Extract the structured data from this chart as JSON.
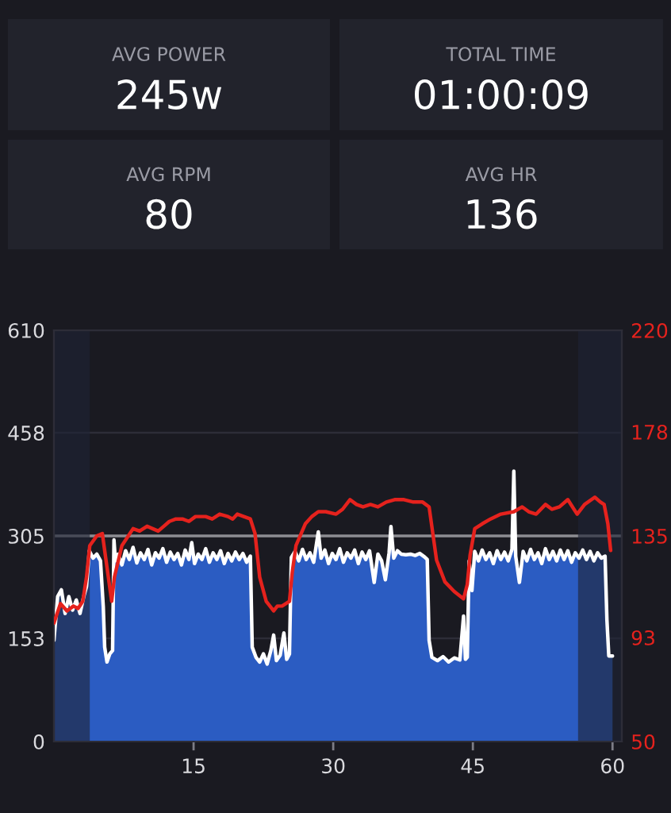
{
  "chart_data": [
    {
      "type": "other",
      "title": "AVG POWER",
      "annotations": [
        "245w"
      ]
    },
    {
      "type": "other",
      "title": "TOTAL TIME",
      "annotations": [
        "01:00:09"
      ]
    },
    {
      "type": "other",
      "title": "AVG RPM",
      "annotations": [
        "80"
      ]
    },
    {
      "type": "other",
      "title": "AVG HR",
      "annotations": [
        "136"
      ]
    },
    {
      "type": "line",
      "xlim": [
        0,
        61
      ],
      "xticks": [
        15,
        30,
        45,
        60
      ],
      "ylim": [
        0,
        610
      ],
      "yticks": [
        0,
        153,
        305,
        458,
        610
      ],
      "y2lim": [
        50,
        220
      ],
      "y2ticks": [
        50,
        93,
        135,
        178,
        220
      ],
      "grid": "y",
      "ref_lines": [
        {
          "axis": "y",
          "value": 305,
          "color": "#8c8c92"
        }
      ],
      "bands": [
        {
          "axis": "x",
          "from": 0,
          "to": 3.85,
          "color": "#1f2436"
        },
        {
          "axis": "x",
          "from": 56.3,
          "to": 61,
          "color": "#1f2436"
        }
      ],
      "series": [
        {
          "type": "area",
          "color": "#2b5cc2",
          "x": [
            0,
            0.4,
            0.8,
            1.2,
            1.6,
            2.0,
            2.4,
            2.8,
            3.2,
            3.5,
            3.8,
            4.2,
            4.6,
            5.0,
            5.3,
            5.45,
            5.7,
            6.0,
            6.3,
            6.45,
            6.6,
            6.9,
            7.3,
            7.7,
            8.1,
            8.5,
            8.9,
            9.3,
            9.7,
            10.1,
            10.5,
            10.9,
            11.3,
            11.7,
            12.1,
            12.5,
            12.9,
            13.3,
            13.7,
            14.1,
            14.5,
            14.8,
            15.1,
            15.5,
            15.9,
            16.3,
            16.7,
            17.1,
            17.5,
            17.9,
            18.3,
            18.7,
            19.1,
            19.5,
            19.9,
            20.3,
            20.7,
            21.1,
            21.3,
            21.7,
            22.1,
            22.5,
            22.9,
            23.3,
            23.6,
            23.9,
            24.3,
            24.7,
            25.0,
            25.3,
            25.5,
            25.9,
            26.3,
            26.7,
            27.1,
            27.5,
            27.9,
            28.4,
            28.7,
            29.1,
            29.5,
            29.9,
            30.3,
            30.7,
            31.1,
            31.5,
            31.9,
            32.3,
            32.7,
            33.1,
            33.5,
            33.9,
            34.4,
            34.8,
            35.2,
            35.6,
            36.0,
            36.2,
            36.5,
            36.9,
            37.3,
            37.8,
            38.3,
            38.8,
            39.3,
            39.8,
            40.1,
            40.3,
            40.6,
            41.2,
            41.8,
            42.4,
            43.0,
            43.6,
            44.0,
            44.2,
            44.4,
            44.6,
            44.9,
            45.2,
            45.6,
            46.0,
            46.4,
            46.8,
            47.2,
            47.6,
            48.0,
            48.4,
            48.8,
            49.2,
            49.4,
            49.6,
            50.0,
            50.4,
            50.8,
            51.2,
            51.6,
            52.0,
            52.4,
            52.8,
            53.2,
            53.6,
            54.0,
            54.4,
            54.8,
            55.2,
            55.6,
            56.0,
            56.4,
            56.8,
            57.2,
            57.6,
            58.0,
            58.4,
            58.8,
            59.2,
            59.4,
            59.6,
            60.0
          ],
          "values": [
            150,
            215,
            225,
            190,
            215,
            195,
            210,
            190,
            215,
            230,
            283,
            272,
            278,
            268,
            200,
            140,
            118,
            130,
            135,
            299,
            268,
            278,
            262,
            283,
            270,
            288,
            265,
            280,
            270,
            285,
            262,
            280,
            272,
            286,
            266,
            281,
            270,
            279,
            262,
            284,
            270,
            295,
            264,
            278,
            270,
            286,
            266,
            280,
            270,
            283,
            264,
            279,
            268,
            281,
            270,
            279,
            266,
            275,
            140,
            125,
            118,
            130,
            115,
            135,
            158,
            120,
            128,
            161,
            122,
            130,
            273,
            282,
            268,
            285,
            270,
            280,
            266,
            311,
            272,
            284,
            264,
            279,
            270,
            286,
            266,
            280,
            272,
            284,
            264,
            281,
            270,
            283,
            236,
            278,
            268,
            240,
            280,
            319,
            272,
            283,
            278,
            277,
            278,
            276,
            279,
            274,
            270,
            150,
            125,
            120,
            126,
            118,
            124,
            121,
            186,
            122,
            125,
            268,
            224,
            282,
            268,
            284,
            270,
            280,
            264,
            283,
            270,
            281,
            268,
            285,
            401,
            275,
            236,
            282,
            268,
            285,
            270,
            280,
            264,
            286,
            270,
            282,
            268,
            284,
            270,
            283,
            266,
            280,
            272,
            284,
            270,
            282,
            268,
            280,
            272,
            275,
            180,
            127,
            127
          ]
        },
        {
          "type": "line",
          "color": "#e5221d",
          "axis": "y2",
          "x": [
            0,
            0.7,
            1.4,
            2.1,
            2.6,
            3.1,
            3.5,
            3.85,
            4.6,
            5.2,
            5.7,
            6.2,
            6.5,
            7.3,
            8.5,
            9.2,
            10.0,
            10.6,
            11.2,
            11.8,
            12.4,
            13.1,
            13.8,
            14.5,
            15.2,
            16.3,
            17.0,
            17.8,
            18.7,
            19.2,
            19.7,
            20.4,
            21.1,
            21.6,
            22.1,
            22.8,
            23.6,
            24.0,
            24.5,
            25.3,
            25.6,
            26.0,
            27.0,
            27.7,
            28.4,
            29.2,
            30.3,
            31.0,
            31.8,
            32.5,
            33.2,
            34.0,
            34.8,
            35.7,
            36.6,
            37.6,
            38.6,
            39.6,
            40.3,
            40.7,
            41.1,
            42.0,
            43.0,
            44.0,
            44.4,
            44.7,
            45.2,
            46.0,
            46.9,
            48.0,
            49.4,
            50.3,
            51.0,
            51.8,
            52.8,
            53.5,
            54.3,
            55.2,
            55.7,
            56.2,
            57.0,
            58.1,
            58.7,
            59.1,
            59.5,
            59.8
          ],
          "values": [
            99,
            107,
            104,
            106,
            105,
            108,
            118,
            131,
            135,
            136,
            122,
            108,
            118,
            131,
            138,
            137,
            139,
            138,
            137,
            139,
            141,
            142,
            142,
            141,
            143,
            143,
            142,
            144,
            143,
            142,
            144,
            143,
            142,
            136,
            118,
            108,
            104,
            106,
            106,
            108,
            120,
            131,
            140,
            143,
            145,
            145,
            144,
            146,
            150,
            148,
            147,
            148,
            147,
            149,
            150,
            150,
            149,
            149,
            147,
            136,
            125,
            116,
            112,
            109,
            115,
            127,
            138,
            140,
            142,
            144,
            145,
            147,
            145,
            144,
            148,
            146,
            147,
            150,
            147,
            144,
            148,
            151,
            149,
            148,
            140,
            129
          ]
        }
      ]
    }
  ]
}
